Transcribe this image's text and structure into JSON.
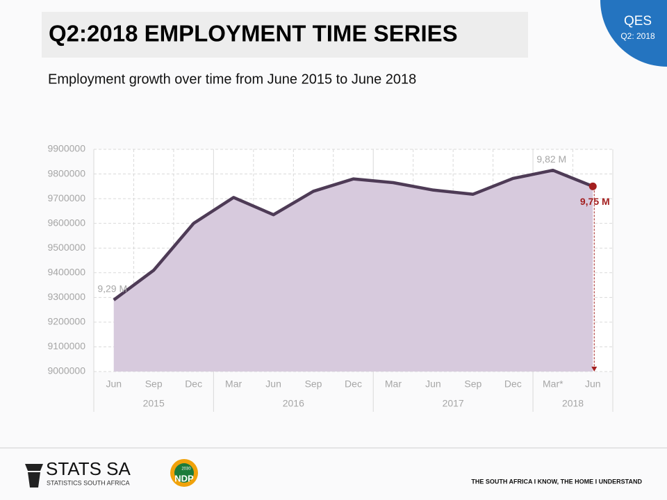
{
  "slide": {
    "title": "Q2:2018 EMPLOYMENT TIME SERIES",
    "subtitle": "Employment growth over time from June 2015 to June 2018",
    "badge": {
      "name": "QES",
      "period": "Q2: 2018"
    },
    "footer": {
      "logo": "STATS SA",
      "logo_sub": "STATISTICS SOUTH AFRICA",
      "ndp": "NDP",
      "ndp_year": "2030",
      "tagline": "THE SOUTH AFRICA I KNOW, THE HOME I UNDERSTAND"
    }
  },
  "chart_data": {
    "type": "area",
    "category_groups": [
      {
        "year": "2015",
        "months": [
          "Jun",
          "Sep",
          "Dec"
        ]
      },
      {
        "year": "2016",
        "months": [
          "Mar",
          "Jun",
          "Sep",
          "Dec"
        ]
      },
      {
        "year": "2017",
        "months": [
          "Mar",
          "Jun",
          "Sep",
          "Dec"
        ]
      },
      {
        "year": "2018",
        "months": [
          "Mar*",
          "Jun"
        ]
      }
    ],
    "values": [
      9290000,
      9410000,
      9600000,
      9705000,
      9635000,
      9730000,
      9780000,
      9765000,
      9735000,
      9718000,
      9782000,
      9815000,
      9750000
    ],
    "value_labels": [
      "9,29 M",
      null,
      null,
      null,
      null,
      null,
      null,
      null,
      null,
      null,
      null,
      "9,82 M",
      "9,75 M"
    ],
    "line_color": "#4e3b56",
    "fill_color": "#d7cadd",
    "highlight_color": "#a31f1f",
    "ylim": [
      9000000,
      9900000
    ],
    "yticks": [
      9000000,
      9100000,
      9200000,
      9300000,
      9400000,
      9500000,
      9600000,
      9700000,
      9800000,
      9900000
    ],
    "grid": true
  }
}
